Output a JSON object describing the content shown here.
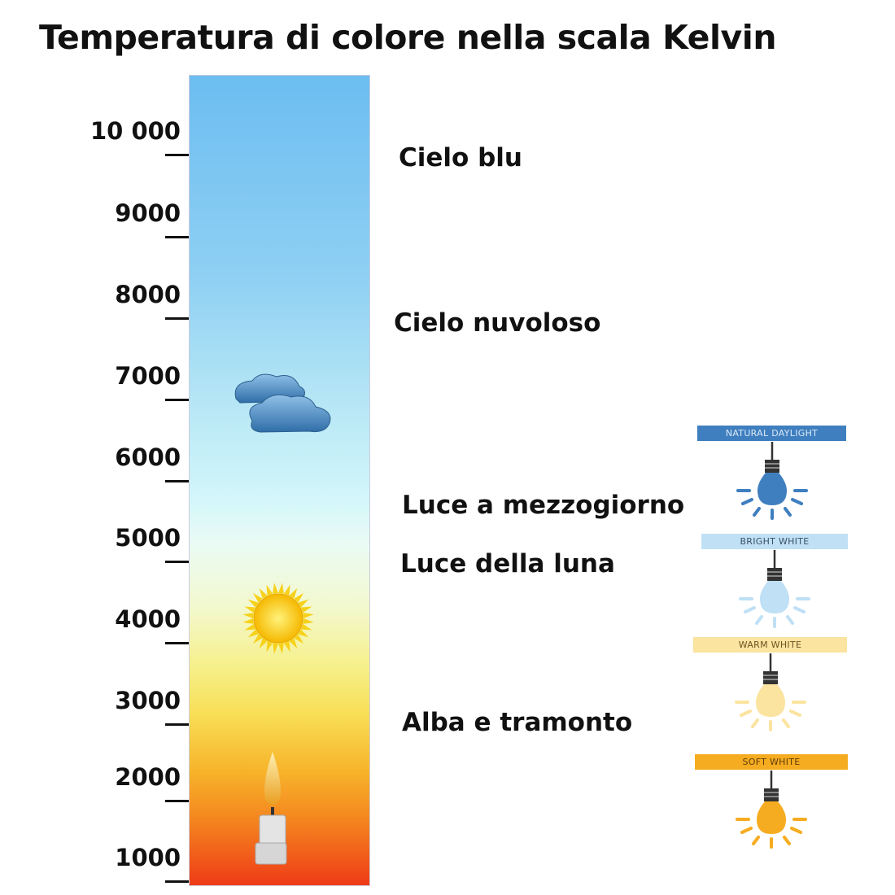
{
  "title": "Temperatura di colore nella scala Kelvin",
  "scale": {
    "ticks": [
      "10 000",
      "9000",
      "8000",
      "7000",
      "6000",
      "5000",
      "4000",
      "3000",
      "2000",
      "1000"
    ]
  },
  "descriptions": [
    "Cielo blu",
    "Cielo nuvoloso",
    "Luce a mezzogiorno",
    "Luce della luna",
    "Alba e tramonto"
  ],
  "icons": [
    "cloud-icon",
    "sun-icon",
    "candle-icon"
  ],
  "lamps": [
    {
      "label": "NATURAL DAYLIGHT",
      "color": "#3f7fbf",
      "text_color": "#dbe9f7"
    },
    {
      "label": "BRIGHT WHITE",
      "color": "#bfe0f5",
      "text_color": "#3b5166"
    },
    {
      "label": "WARM WHITE",
      "color": "#fbe3a0",
      "text_color": "#6a5420"
    },
    {
      "label": "SOFT WHITE",
      "color": "#f6ac20",
      "text_color": "#5e3e08"
    }
  ]
}
